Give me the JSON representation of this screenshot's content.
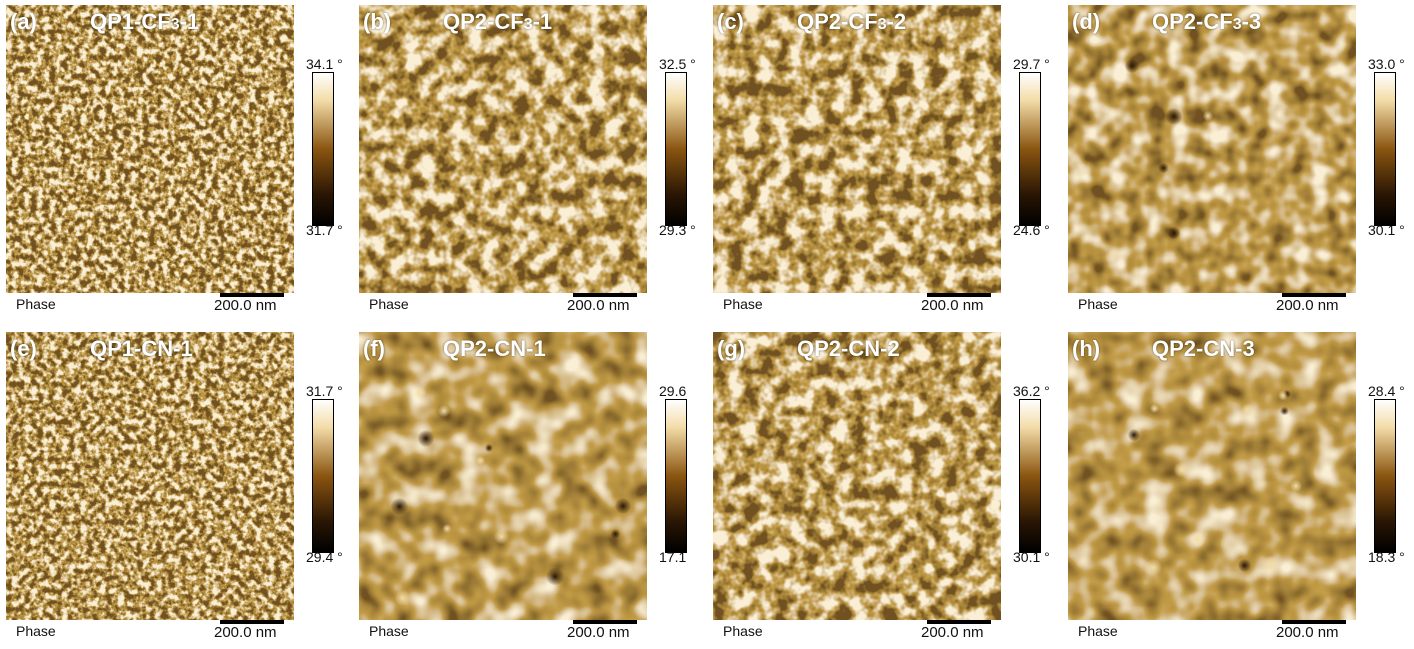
{
  "phase_label": "Phase",
  "scale_label": "200.0 nm",
  "palette": {
    "dark": "#2a1604",
    "mid": "#8a5510",
    "bright": "#f3dca8"
  },
  "panels": [
    {
      "tag": "(a)",
      "prefix": "QP1-CF",
      "sub": "3",
      "suffix": "-1",
      "max": "34.1 °",
      "min": "31.7 °",
      "texture": "fine"
    },
    {
      "tag": "(b)",
      "prefix": "QP2-CF",
      "sub": "3",
      "suffix": "-1",
      "max": "32.5 °",
      "min": "29.3 °",
      "texture": "medium"
    },
    {
      "tag": "(c)",
      "prefix": "QP2-CF",
      "sub": "3",
      "suffix": "-2",
      "max": "29.7 °",
      "min": "24.6 °",
      "texture": "medium"
    },
    {
      "tag": "(d)",
      "prefix": "QP2-CF",
      "sub": "3",
      "suffix": "-3",
      "max": "33.0 °",
      "min": "30.1 °",
      "texture": "smooth"
    },
    {
      "tag": "(e)",
      "prefix": "QP1-CN-1",
      "sub": "",
      "suffix": "",
      "max": "31.7 °",
      "min": "29.4 °",
      "texture": "fine"
    },
    {
      "tag": "(f)",
      "prefix": "QP2-CN-1",
      "sub": "",
      "suffix": "",
      "max": "29.6",
      "min": "17.1",
      "texture": "soft"
    },
    {
      "tag": "(g)",
      "prefix": "QP2-CN-2",
      "sub": "",
      "suffix": "",
      "max": "36.2 °",
      "min": "30.1 °",
      "texture": "medium"
    },
    {
      "tag": "(h)",
      "prefix": "QP2-CN-3",
      "sub": "",
      "suffix": "",
      "max": "28.4 °",
      "min": "18.3 °",
      "texture": "soft"
    }
  ]
}
